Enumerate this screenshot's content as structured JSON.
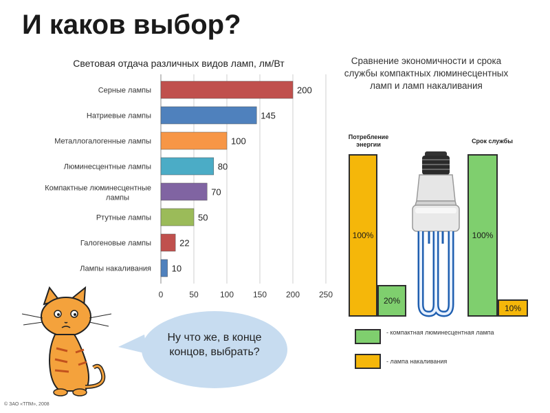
{
  "header": {
    "title": "И каков выбор?"
  },
  "chart_data": [
    {
      "type": "bar",
      "orientation": "horizontal",
      "title": "Световая отдача различных видов ламп, лм/Вт",
      "categories": [
        "Серные лампы",
        "Натриевые лампы",
        "Металлогалогенные лампы",
        "Люминесцентные лампы",
        "Компактные люминесцентные лампы",
        "Ртутные лампы",
        "Галогеновые лампы",
        "Лампы накаливания"
      ],
      "values": [
        200,
        145,
        100,
        80,
        70,
        50,
        22,
        10
      ],
      "colors": [
        "#c0504d",
        "#4f81bd",
        "#f79646",
        "#4bacc6",
        "#8064a2",
        "#9bbb59",
        "#c0504d",
        "#4f81bd"
      ],
      "xlim": [
        0,
        250
      ],
      "xticks": [
        0,
        50,
        100,
        150,
        200,
        250
      ],
      "grid": true
    },
    {
      "type": "bar",
      "title": "Сравнение экономичности и срока службы компактных люминесцентных ламп и ламп накаливания",
      "groups": [
        {
          "label": "Потребление энергии",
          "values": [
            {
              "series": "лампа накаливания",
              "value": 100,
              "label": "100%"
            },
            {
              "series": "компактная люминесцентная лампа",
              "value": 20,
              "label": "20%"
            }
          ]
        },
        {
          "label": "Срок службы",
          "values": [
            {
              "series": "компактная люминесцентная лампа",
              "value": 100,
              "label": "100%"
            },
            {
              "series": "лампа накаливания",
              "value": 10,
              "label": "10%"
            }
          ]
        }
      ],
      "legend": [
        {
          "label": "- компактная люминесцентная лампа",
          "color": "#7fcf6e"
        },
        {
          "label": "- лампа накаливания",
          "color": "#f5b70a"
        }
      ]
    }
  ],
  "bubble": {
    "text": "Ну что же, в конце концов, выбрать?"
  },
  "footer": {
    "text": "© ЗАО «ТПМ», 2008"
  },
  "icons": {
    "bulb": "cfl-bulb-icon",
    "cat": "cat-icon"
  }
}
